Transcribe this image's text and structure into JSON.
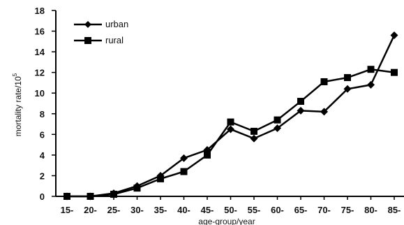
{
  "chart_data": {
    "type": "line",
    "xlabel": "age-group/year",
    "ylabel": "mortality rate/10",
    "ylabel_superscript": "5",
    "categories": [
      "15-",
      "20-",
      "25-",
      "30-",
      "35-",
      "40-",
      "45-",
      "50-",
      "55-",
      "60-",
      "65-",
      "70-",
      "75-",
      "80-",
      "85-"
    ],
    "y_ticks": [
      "0",
      "2",
      "4",
      "6",
      "8",
      "10",
      "12",
      "14",
      "16",
      "18"
    ],
    "ylim": [
      0,
      18
    ],
    "grid": false,
    "legend_position": "top-left",
    "series": [
      {
        "name": "urban",
        "marker": "diamond",
        "color": "#000000",
        "values": [
          0.0,
          0.0,
          0.3,
          1.0,
          2.0,
          3.7,
          4.5,
          6.5,
          5.6,
          6.6,
          8.3,
          8.2,
          10.4,
          10.8,
          15.6
        ]
      },
      {
        "name": "rural",
        "marker": "square",
        "color": "#000000",
        "values": [
          0.0,
          0.0,
          0.2,
          0.8,
          1.7,
          2.4,
          4.0,
          7.2,
          6.3,
          7.4,
          9.2,
          11.1,
          11.5,
          12.3,
          12.0
        ]
      }
    ]
  }
}
